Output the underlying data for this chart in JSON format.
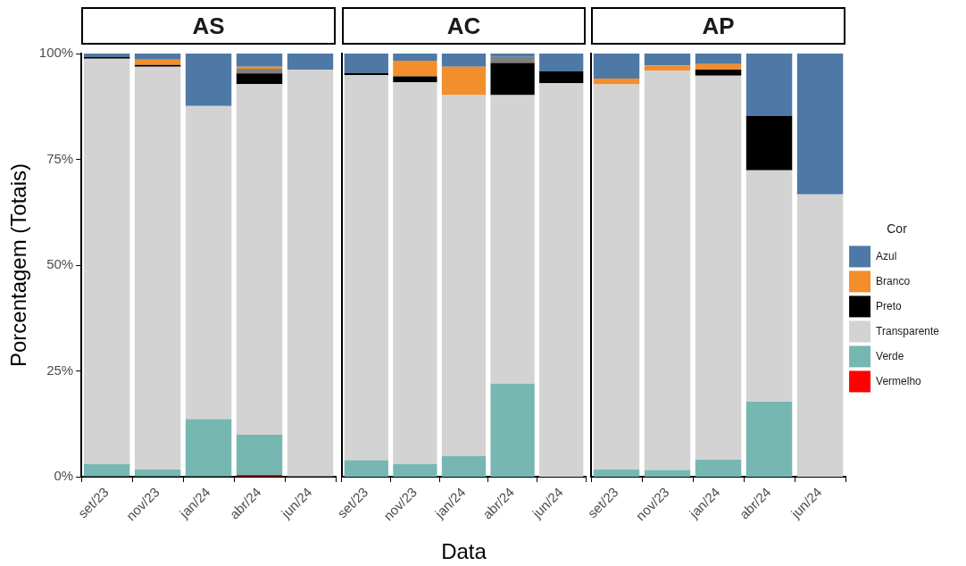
{
  "chart_data": [
    {
      "type": "bar",
      "title": "AS",
      "ylabel": "Porcentagem (Totais)",
      "stacked": true,
      "grid": false,
      "legend": false,
      "categories": [
        "set/23",
        "nov/23",
        "jan/24",
        "abr/24",
        "jun/24"
      ],
      "ylim": [
        0,
        100
      ],
      "yticks": [
        {
          "value": 0,
          "label": "0%"
        },
        {
          "value": 25,
          "label": "25%"
        },
        {
          "value": 50,
          "label": "50%"
        },
        {
          "value": 75,
          "label": "75%"
        },
        {
          "value": 100,
          "label": "100%"
        }
      ],
      "series": [
        {
          "color": "#ff0000",
          "values": [
            0,
            0,
            0,
            0.4,
            0
          ]
        },
        {
          "color": "#76b7b2",
          "values": [
            3,
            1.7,
            13.6,
            9.5,
            0
          ]
        },
        {
          "color": "#d3d3d3",
          "values": [
            95.8,
            95.2,
            74,
            82.9,
            96.2
          ]
        },
        {
          "color": "#000000",
          "values": [
            0.4,
            0.4,
            0,
            2.5,
            0
          ]
        },
        {
          "color": "#808080",
          "values": [
            0,
            0,
            0,
            1.1,
            0
          ]
        },
        {
          "color": "#f28e2b",
          "values": [
            0,
            1.3,
            0,
            0.5,
            0
          ]
        },
        {
          "color": "#4e79a7",
          "values": [
            0.8,
            1.4,
            12.4,
            3.1,
            3.8
          ]
        }
      ]
    },
    {
      "type": "bar",
      "title": "AC",
      "xlabel": "Data",
      "stacked": true,
      "grid": false,
      "legend": false,
      "tick_labels": "x",
      "categories": [
        "set/23",
        "nov/23",
        "jan/24",
        "abr/24",
        "jun/24"
      ],
      "ylim": [
        0,
        100
      ],
      "series": [
        {
          "color": "#ff0000",
          "values": [
            0,
            0,
            0,
            0,
            0
          ]
        },
        {
          "color": "#76b7b2",
          "values": [
            3.9,
            3,
            4.9,
            22,
            0
          ]
        },
        {
          "color": "#d3d3d3",
          "values": [
            91,
            90.2,
            85.3,
            68.2,
            93
          ]
        },
        {
          "color": "#000000",
          "values": [
            0.5,
            1.4,
            0,
            7.6,
            2.8
          ]
        },
        {
          "color": "#808080",
          "values": [
            0,
            0,
            0,
            1.4,
            0
          ]
        },
        {
          "color": "#f28e2b",
          "values": [
            0,
            3.7,
            6.7,
            0,
            0
          ]
        },
        {
          "color": "#4e79a7",
          "values": [
            4.6,
            1.7,
            3.1,
            0.8,
            4.2
          ]
        }
      ]
    },
    {
      "type": "bar",
      "title": "AP",
      "legend_title": "Cor",
      "stacked": true,
      "grid": false,
      "legend": "right",
      "tick_labels": "x",
      "categories": [
        "set/23",
        "nov/23",
        "jan/24",
        "abr/24",
        "jun/24"
      ],
      "ylim": [
        0,
        100
      ],
      "series": [
        {
          "name": "Vermelho",
          "color": "#ff0000",
          "values": [
            0,
            0,
            0,
            0,
            0
          ]
        },
        {
          "name": "Verde",
          "color": "#76b7b2",
          "values": [
            1.7,
            1.6,
            4,
            17.7,
            0
          ]
        },
        {
          "name": "Transparente",
          "color": "#d3d3d3",
          "values": [
            91,
            94.4,
            90.8,
            54.7,
            66.7
          ]
        },
        {
          "name": "Preto",
          "color": "#000000",
          "values": [
            0,
            0,
            1.4,
            12.9,
            0
          ]
        },
        {
          "name": "Branco",
          "color": "#f28e2b",
          "values": [
            1.4,
            1.2,
            1.3,
            0,
            0
          ]
        },
        {
          "name": "Azul",
          "color": "#4e79a7",
          "values": [
            5.9,
            2.8,
            2.5,
            14.7,
            33.3
          ]
        }
      ]
    }
  ]
}
